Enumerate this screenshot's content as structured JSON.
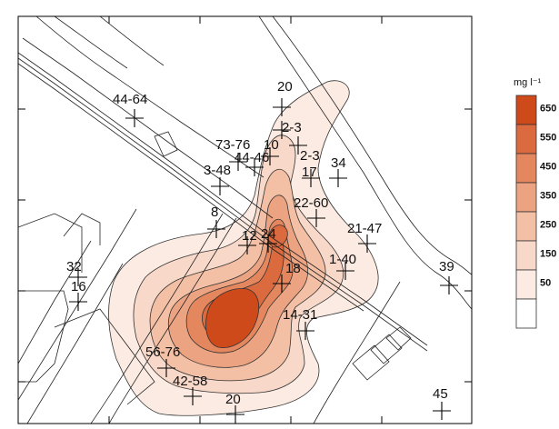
{
  "legend": {
    "unit": "mg l⁻¹",
    "classes": [
      {
        "label": "650",
        "color": "#cf4a1b"
      },
      {
        "label": "550",
        "color": "#db6a3f"
      },
      {
        "label": "450",
        "color": "#e4875e"
      },
      {
        "label": "350",
        "color": "#eca381"
      },
      {
        "label": "250",
        "color": "#f3bfa5"
      },
      {
        "label": "150",
        "color": "#f8d8c8"
      },
      {
        "label": "50",
        "color": "#fcebe2"
      },
      {
        "label": "",
        "color": "#ffffff"
      }
    ]
  },
  "wells": [
    {
      "label": "44-64"
    },
    {
      "label": "20"
    },
    {
      "label": "2-3"
    },
    {
      "label": "73-76"
    },
    {
      "label": "10"
    },
    {
      "label": "44-46"
    },
    {
      "label": "2-3"
    },
    {
      "label": "17"
    },
    {
      "label": "34"
    },
    {
      "label": "3-48"
    },
    {
      "label": "22-60"
    },
    {
      "label": "8"
    },
    {
      "label": "12"
    },
    {
      "label": "24"
    },
    {
      "label": "21-47"
    },
    {
      "label": "1-40"
    },
    {
      "label": "32"
    },
    {
      "label": "16"
    },
    {
      "label": "39"
    },
    {
      "label": "18"
    },
    {
      "label": "14-31"
    },
    {
      "label": "56-76"
    },
    {
      "label": "42-58"
    },
    {
      "label": "20"
    },
    {
      "label": "45"
    }
  ]
}
